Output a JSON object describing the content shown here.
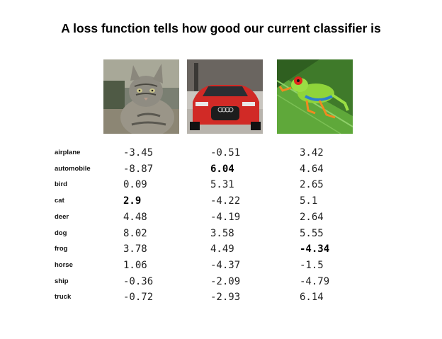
{
  "slide": {
    "title": "A loss function tells how good our current classifier is"
  },
  "images": [
    {
      "name": "cat-image",
      "subject": "cat"
    },
    {
      "name": "car-image",
      "subject": "car"
    },
    {
      "name": "frog-image",
      "subject": "frog"
    }
  ],
  "table": {
    "class_labels": [
      "airplane",
      "automobile",
      "bird",
      "cat",
      "deer",
      "dog",
      "frog",
      "horse",
      "ship",
      "truck"
    ],
    "columns": [
      {
        "image": "cat",
        "scores": [
          "-3.45",
          "-8.87",
          "0.09",
          "2.9",
          "4.48",
          "8.02",
          "3.78",
          "1.06",
          "-0.36",
          "-0.72"
        ],
        "highlight_index": 3
      },
      {
        "image": "car",
        "scores": [
          "-0.51",
          "6.04",
          "5.31",
          "-4.22",
          "-4.19",
          "3.58",
          "4.49",
          "-4.37",
          "-2.09",
          "-2.93"
        ],
        "highlight_index": 1
      },
      {
        "image": "frog",
        "scores": [
          "3.42",
          "4.64",
          "2.65",
          "5.1",
          "2.64",
          "5.55",
          "-4.34",
          "-1.5",
          "-4.79",
          "6.14"
        ],
        "highlight_index": 6
      }
    ]
  }
}
